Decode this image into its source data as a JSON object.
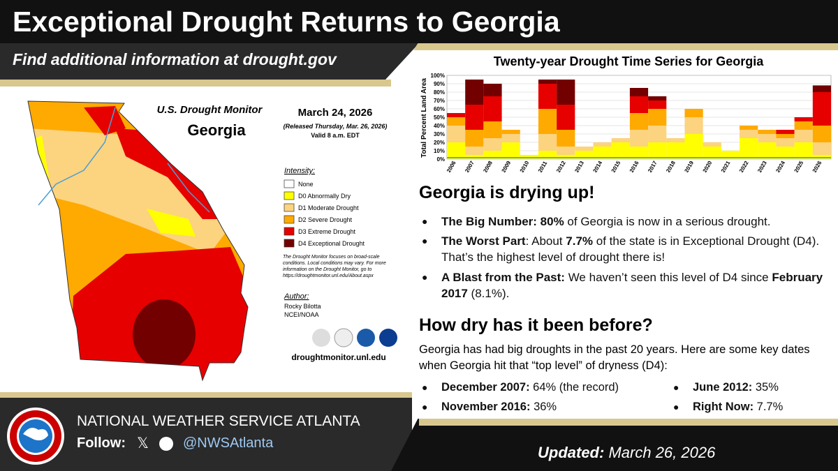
{
  "header": {
    "title": "Exceptional Drought Returns to Georgia",
    "subtitle": "Find additional information at drought.gov"
  },
  "map": {
    "heading": "U.S. Drought Monitor",
    "state": "Georgia",
    "date": "March 24, 2026",
    "released": "(Released Thursday, Mar. 26, 2026)",
    "valid": "Valid 8 a.m. EDT",
    "legend_title": "Intensity:",
    "legend": [
      {
        "label": "None",
        "color": "#ffffff"
      },
      {
        "label": "D0 Abnormally Dry",
        "color": "#ffff00"
      },
      {
        "label": "D1 Moderate Drought",
        "color": "#fcd37f"
      },
      {
        "label": "D2 Severe Drought",
        "color": "#ffaa00"
      },
      {
        "label": "D3 Extreme Drought",
        "color": "#e60000"
      },
      {
        "label": "D4 Exceptional Drought",
        "color": "#730000"
      }
    ],
    "note": "The Drought Monitor focuses on broad-scale conditions. Local conditions may vary. For more information on the Drought Monitor, go to https://droughtmonitor.unl.edu/About.aspx",
    "author_title": "Author:",
    "author": "Rocky Bilotta",
    "author_org": "NCEI/NOAA",
    "url": "droughtmonitor.unl.edu"
  },
  "chart_data": {
    "type": "stacked_bar",
    "title": "Twenty-year Drought Time Series for Georgia",
    "ylabel": "Total Percent Land Area",
    "categories": [
      "2006",
      "2007",
      "2008",
      "2009",
      "2010",
      "2011",
      "2012",
      "2013",
      "2014",
      "2015",
      "2016",
      "2017",
      "2018",
      "2019",
      "2020",
      "2021",
      "2022",
      "2023",
      "2024",
      "2025",
      "2026"
    ],
    "series": [
      {
        "name": "D0",
        "color": "#ffff00",
        "values": [
          20,
          5,
          10,
          20,
          5,
          10,
          5,
          10,
          15,
          20,
          15,
          20,
          20,
          30,
          15,
          10,
          25,
          20,
          15,
          20,
          5
        ]
      },
      {
        "name": "D1",
        "color": "#fcd37f",
        "values": [
          20,
          10,
          15,
          10,
          0,
          20,
          10,
          5,
          5,
          5,
          20,
          20,
          5,
          20,
          5,
          0,
          10,
          10,
          10,
          15,
          15
        ]
      },
      {
        "name": "D2",
        "color": "#ffaa00",
        "values": [
          10,
          20,
          20,
          5,
          0,
          30,
          20,
          0,
          0,
          0,
          20,
          20,
          0,
          10,
          0,
          0,
          5,
          5,
          5,
          10,
          20
        ]
      },
      {
        "name": "D3",
        "color": "#e60000",
        "values": [
          5,
          30,
          30,
          0,
          0,
          30,
          30,
          0,
          0,
          0,
          20,
          10,
          0,
          0,
          0,
          0,
          0,
          0,
          5,
          5,
          40
        ]
      },
      {
        "name": "D4",
        "color": "#730000",
        "values": [
          0,
          30,
          15,
          0,
          0,
          5,
          30,
          0,
          0,
          0,
          10,
          5,
          0,
          0,
          0,
          0,
          0,
          0,
          0,
          0,
          8
        ]
      }
    ],
    "ylim": [
      0,
      100
    ],
    "yticks": [
      {
        "value": 0,
        "label": "0%"
      },
      {
        "value": 10,
        "label": "10%"
      },
      {
        "value": 20,
        "label": "20%"
      },
      {
        "value": 30,
        "label": "30%"
      },
      {
        "value": 40,
        "label": "40%"
      },
      {
        "value": 50,
        "label": "50%"
      },
      {
        "value": 60,
        "label": "60%"
      },
      {
        "value": 70,
        "label": "70%"
      },
      {
        "value": 80,
        "label": "80%"
      },
      {
        "value": 90,
        "label": "90%"
      },
      {
        "value": 100,
        "label": "100%"
      }
    ],
    "grid": true
  },
  "summary": {
    "heading": "Georgia is drying up!",
    "bullets": [
      [
        {
          "bold": "The Big Number: 80%"
        },
        {
          "text": " of Georgia is now in a serious drought."
        }
      ],
      [
        {
          "bold": "The Worst Part"
        },
        {
          "text": ": About "
        },
        {
          "bold": "7.7%"
        },
        {
          "text": " of the state is in Exceptional Drought (D4). That’s the highest level of drought there is!"
        }
      ],
      [
        {
          "bold": "A Blast from the Past:"
        },
        {
          "text": " We haven’t seen this level of D4 since "
        },
        {
          "bold": "February 2017"
        },
        {
          "text": " (8.1%)."
        }
      ]
    ]
  },
  "history": {
    "heading": "How dry has it been before?",
    "intro": "Georgia has had big droughts in the past 20 years. Here are some key dates when Georgia hit that “top level” of dryness (D4):",
    "dates": [
      [
        {
          "bold": "December 2007:"
        },
        {
          "text": " 64% (the record)"
        }
      ],
      [
        {
          "bold": "June 2012:"
        },
        {
          "text": " 35%"
        }
      ],
      [
        {
          "bold": "November 2016:"
        },
        {
          "text": " 36%"
        }
      ],
      [
        {
          "bold": "Right Now:"
        },
        {
          "text": " 7.7%"
        }
      ]
    ]
  },
  "footer": {
    "office": "NATIONAL WEATHER SERVICE ATLANTA",
    "follow": "Follow:",
    "x_icon": "𝕏",
    "handle": "@NWSAtlanta",
    "updated_label": "Updated:",
    "updated": "March 26, 2026"
  }
}
